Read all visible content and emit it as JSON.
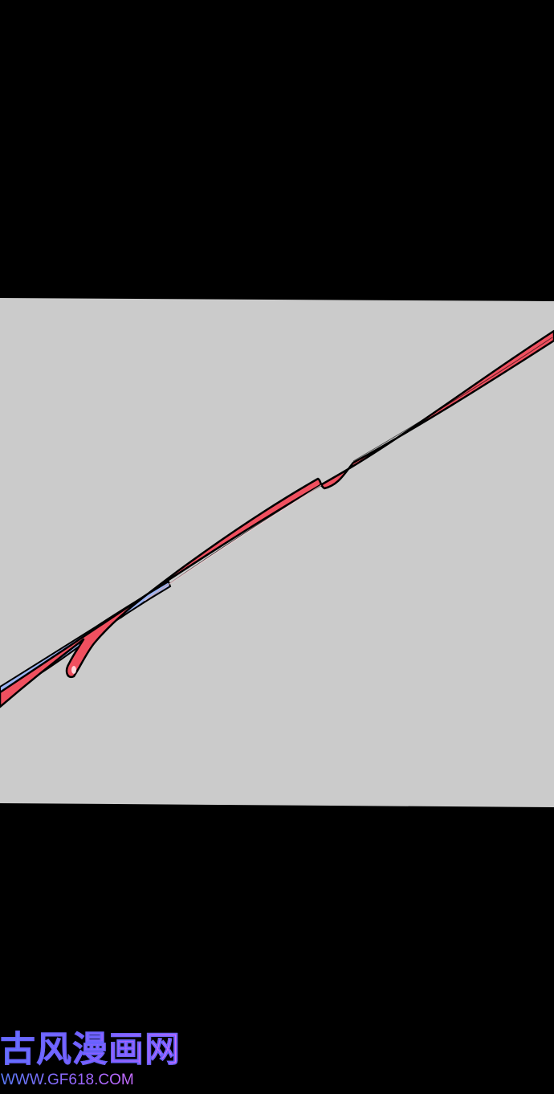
{
  "panel": {
    "background_color": "#000000",
    "frame_color": "#cbcbcb",
    "slash_color": "#f0505f",
    "slash_highlight_color": "#9cb4f2",
    "outline_color": "#000000"
  },
  "watermark": {
    "title": "古风漫画网",
    "url": "WWW.GF618.COM",
    "gradient_start": "#5b7cff",
    "gradient_end": "#d86cff"
  }
}
